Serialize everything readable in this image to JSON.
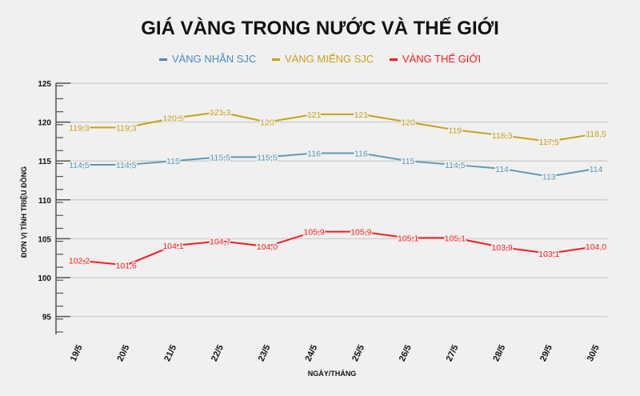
{
  "chart_data": {
    "type": "line",
    "title": "GIÁ VÀNG TRONG NƯỚC VÀ THẾ GIỚI",
    "xlabel": "NGÀY/THÁNG",
    "ylabel": "ĐƠN VỊ TÍNH TRIỆU ĐỒNG",
    "categories": [
      "19/5",
      "20/5",
      "21/5",
      "22/5",
      "23/5",
      "24/5",
      "25/5",
      "26/5",
      "27/5",
      "28/5",
      "29/5",
      "30/5"
    ],
    "ylim": [
      93,
      125
    ],
    "yticks": [
      95,
      100,
      105,
      110,
      115,
      120,
      125
    ],
    "grid": true,
    "legend_position": "top",
    "series": [
      {
        "name": "VÀNG NHẪN SJC",
        "color": "#5b9ab8",
        "legend_color": "#4a8ac8",
        "values": [
          114.5,
          114.5,
          115,
          115.5,
          115.5,
          116,
          116,
          115,
          114.5,
          114,
          113,
          114
        ],
        "labels": [
          "114,5",
          "114,5",
          "115",
          "115,5",
          "115,5",
          "116",
          "116",
          "115",
          "114,5",
          "114",
          "113",
          "114"
        ]
      },
      {
        "name": "VÀNG MIẾNG SJC",
        "color": "#c9a013",
        "legend_color": "#c9a013",
        "values": [
          119.3,
          119.3,
          120.5,
          121.3,
          120,
          121,
          121,
          120,
          119,
          118.3,
          117.5,
          118.5
        ],
        "labels": [
          "119,3",
          "119,3",
          "120,5",
          "121,3",
          "120",
          "121",
          "121",
          "120",
          "119",
          "118,3",
          "117,5",
          "118,5"
        ]
      },
      {
        "name": "VÀNG THẾ GIỚI",
        "color": "#ff1a1a",
        "legend_color": "#ff1a1a",
        "values": [
          102.2,
          101.6,
          104.1,
          104.7,
          104.0,
          105.9,
          105.9,
          105.1,
          105.1,
          103.9,
          103.1,
          104.0
        ],
        "labels": [
          "102,2",
          "101,6",
          "104,1",
          "104,7",
          "104,0",
          "105,9",
          "105,9",
          "105,1",
          "105,1",
          "103,9",
          "103,1",
          "104,0"
        ]
      }
    ]
  }
}
